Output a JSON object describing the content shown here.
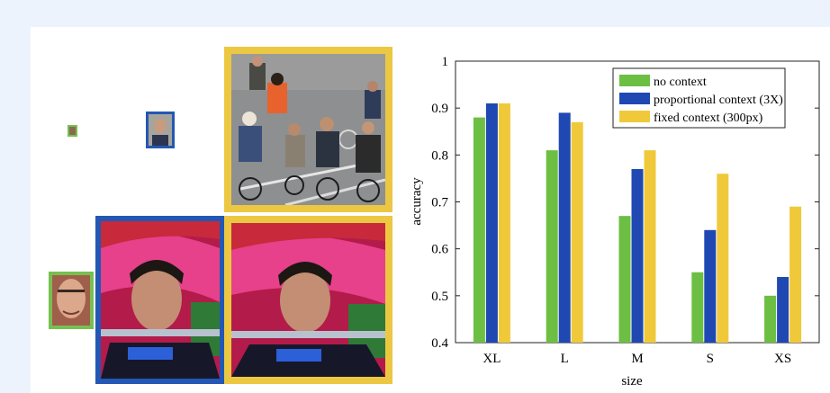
{
  "chart_data": {
    "type": "bar",
    "categories": [
      "XL",
      "L",
      "M",
      "S",
      "XS"
    ],
    "series": [
      {
        "name": "no context",
        "color": "#6cbf43",
        "values": [
          0.88,
          0.81,
          0.67,
          0.55,
          0.5
        ]
      },
      {
        "name": "proportional context (3X)",
        "color": "#1f48b3",
        "values": [
          0.91,
          0.89,
          0.77,
          0.64,
          0.54
        ]
      },
      {
        "name": "fixed context (300px)",
        "color": "#f0c93a",
        "values": [
          0.91,
          0.87,
          0.81,
          0.76,
          0.69
        ]
      }
    ],
    "xlabel": "size",
    "ylabel": "accuracy",
    "ylim": [
      0.4,
      1.0
    ],
    "yticks": [
      0.4,
      0.5,
      0.6,
      0.7,
      0.8,
      0.9,
      1
    ],
    "yticklabels": [
      "0.4",
      "0.5",
      "0.6",
      "0.7",
      "0.8",
      "0.9",
      "1"
    ],
    "legend_position": "top-right",
    "grid": false
  },
  "images": {
    "colors": {
      "green": "#77c050",
      "blue": "#2357b4",
      "yellow": "#ecc842"
    }
  }
}
